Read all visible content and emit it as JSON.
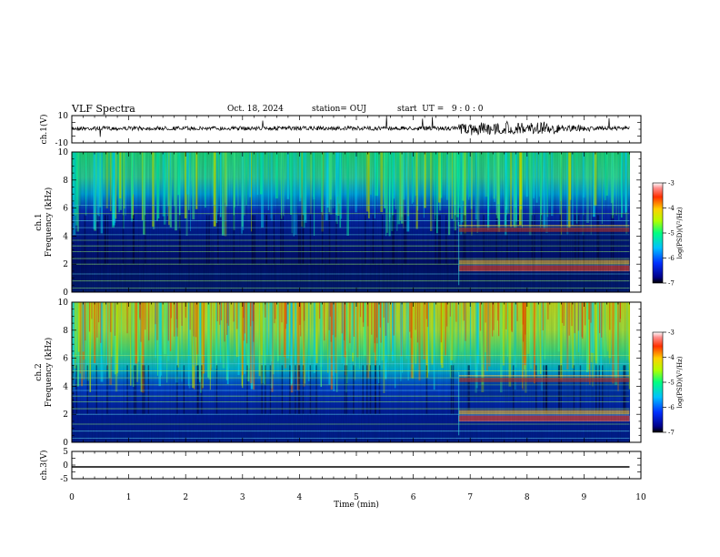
{
  "header": {
    "title": "VLF Spectra",
    "date": "Oct. 18, 2024",
    "station": "station= OUJ",
    "start": "start  UT =   9 : 0 : 0"
  },
  "chart_data": [
    {
      "type": "line",
      "panel": "ch1-waveform",
      "ylabel": "ch.1(V)",
      "ylim": [
        -10,
        10
      ],
      "yticks": [
        "10",
        "-10"
      ],
      "xlim": [
        0,
        10
      ]
    },
    {
      "type": "heatmap",
      "panel": "ch1-spectrogram",
      "ylabel_line1": "ch.1",
      "ylabel_line2": "Frequency (kHz)",
      "ylim": [
        0,
        10
      ],
      "yticks": [
        0,
        2,
        4,
        6,
        8,
        10
      ],
      "xlim": [
        0,
        10
      ],
      "colorbar": {
        "label": "log(PSD)(V²/Hz)",
        "ticks": [
          "-3",
          "-4",
          "-5",
          "-6",
          "-7"
        ],
        "range": [
          -7,
          -3
        ]
      }
    },
    {
      "type": "heatmap",
      "panel": "ch2-spectrogram",
      "ylabel_line1": "ch.2",
      "ylabel_line2": "Frequency (kHz)",
      "ylim": [
        0,
        10
      ],
      "yticks": [
        0,
        2,
        4,
        6,
        8,
        10
      ],
      "xlim": [
        0,
        10
      ],
      "colorbar": {
        "label": "log(PSD)(V²/Hz)",
        "ticks": [
          "-3",
          "-4",
          "-5",
          "-6",
          "-7"
        ],
        "range": [
          -7,
          -3
        ]
      }
    },
    {
      "type": "line",
      "panel": "ch3-waveform",
      "ylabel": "ch.3(V)",
      "ylim": [
        -5,
        5
      ],
      "yticks": [
        "5",
        "0",
        "-5"
      ],
      "xlim": [
        0,
        10
      ],
      "xlabel": "Time (min)",
      "xticks": [
        0,
        1,
        2,
        3,
        4,
        5,
        6,
        7,
        8,
        9,
        10
      ]
    }
  ]
}
